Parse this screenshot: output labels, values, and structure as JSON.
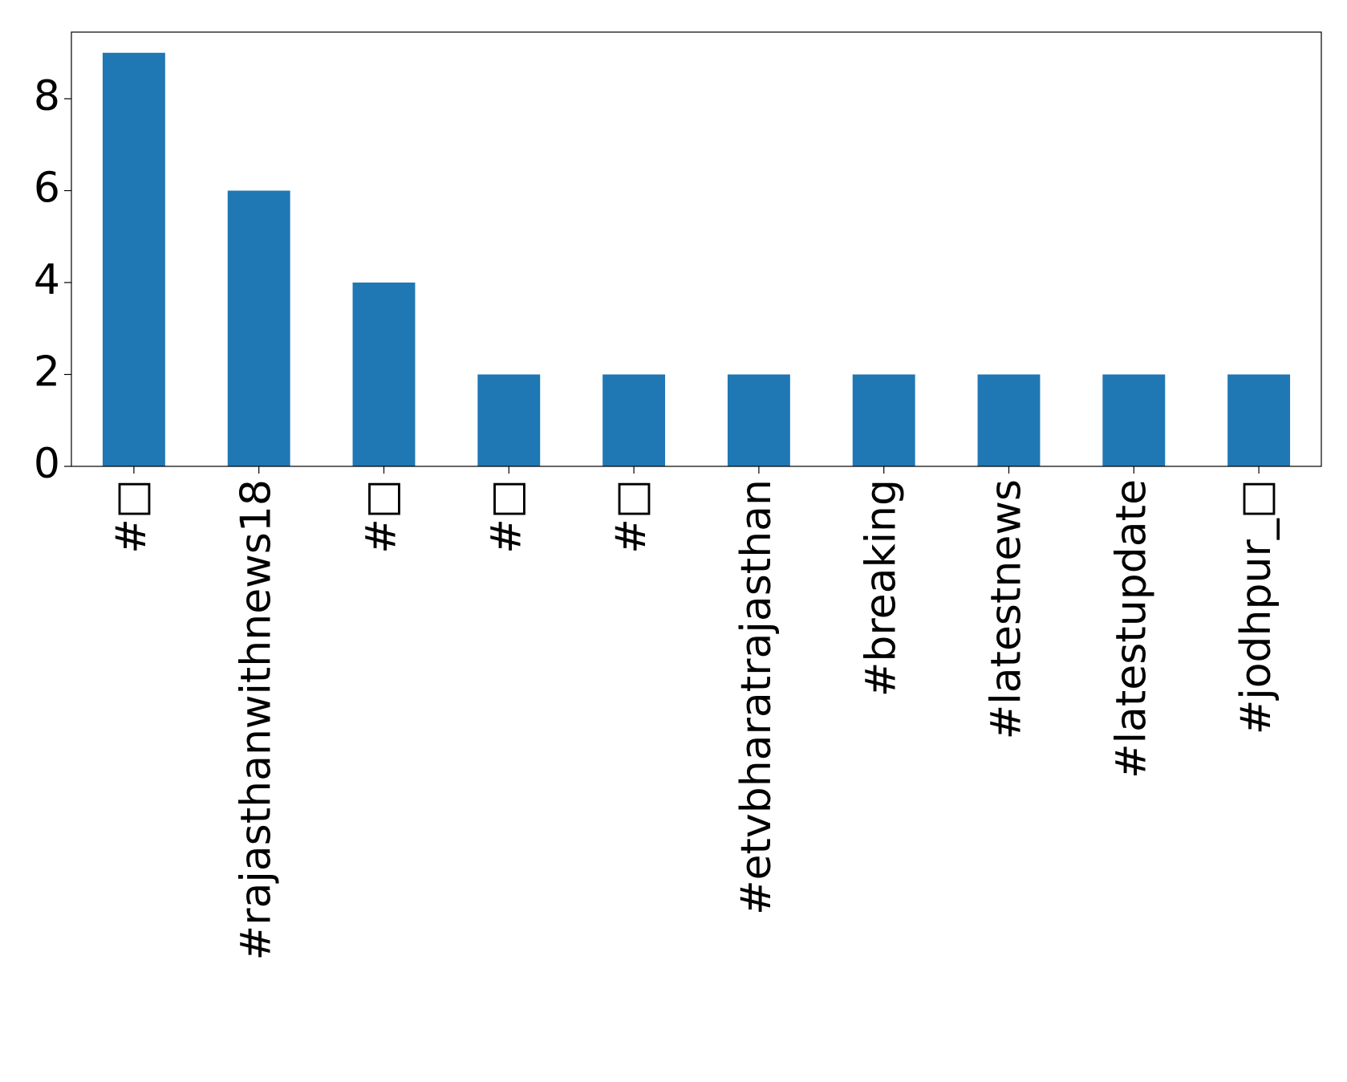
{
  "chart_data": {
    "type": "bar",
    "categories": [
      "#□",
      "#rajasthanwithnews18",
      "#□",
      "#□",
      "#□",
      "#etvbharatrajasthan",
      "#breaking",
      "#latestnews",
      "#latestupdate",
      "#jodhpur_□"
    ],
    "values": [
      9,
      6,
      4,
      2,
      2,
      2,
      2,
      2,
      2,
      2
    ],
    "color": "#1f77b4",
    "ylim": [
      0,
      9.45
    ],
    "yticks": [
      0,
      2,
      4,
      6,
      8
    ],
    "grid": false
  }
}
